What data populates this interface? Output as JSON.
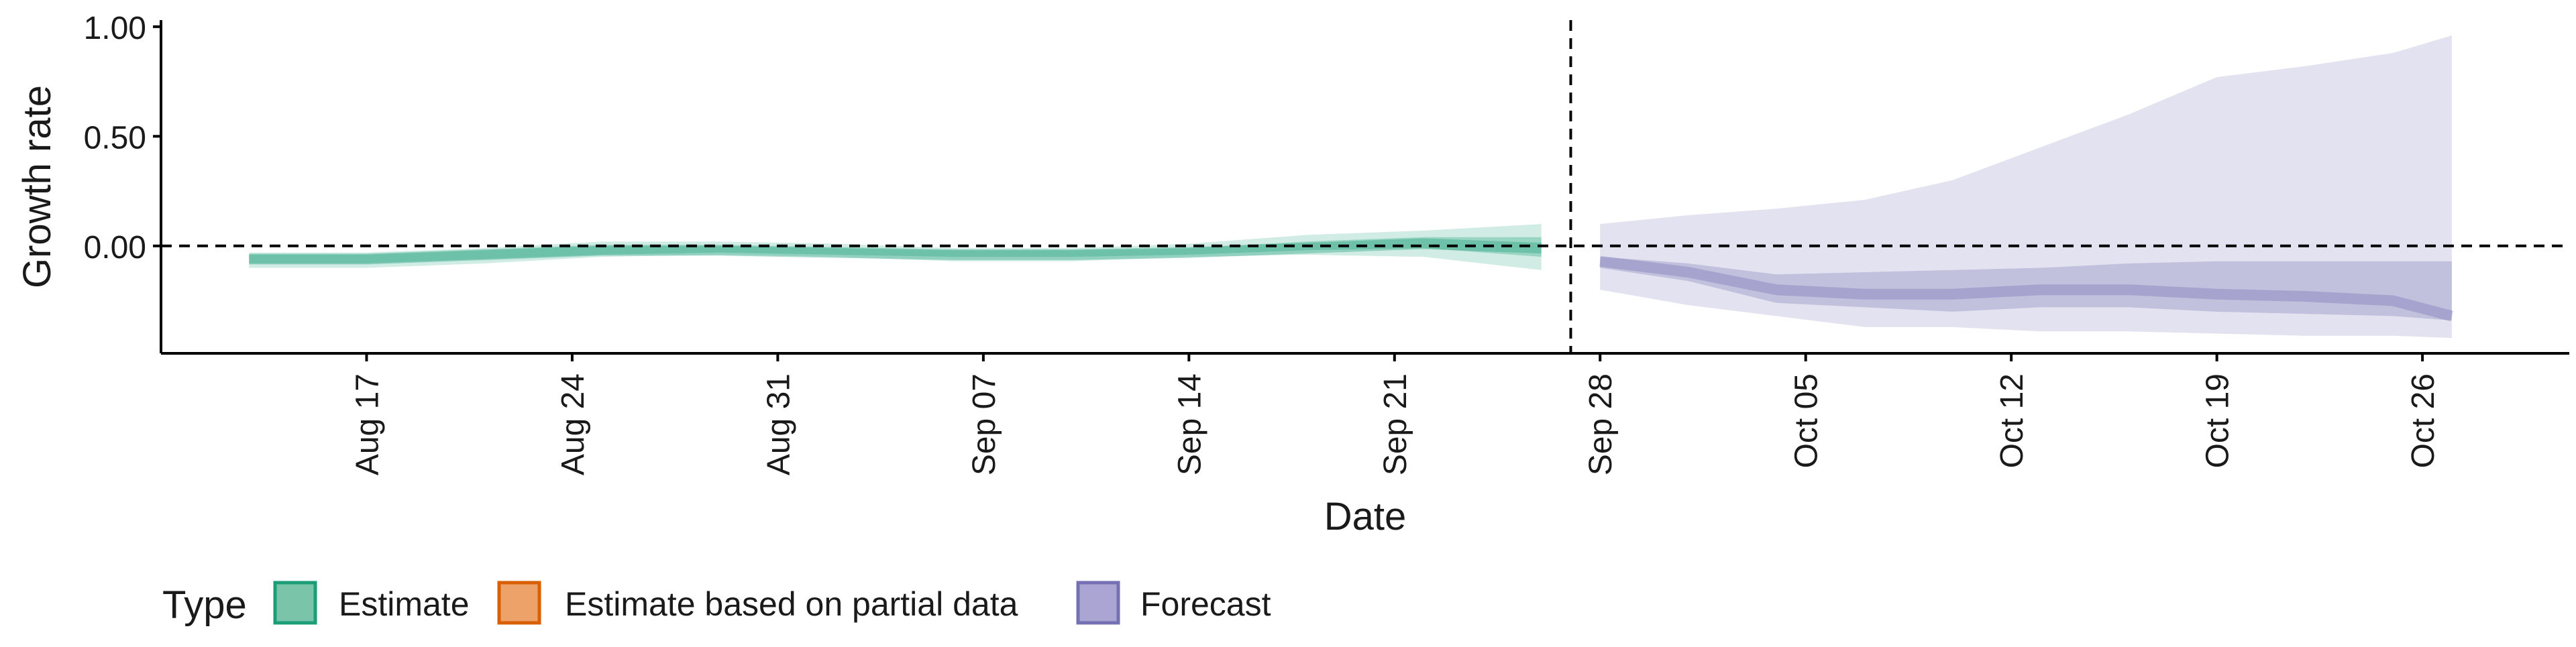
{
  "chart_data": {
    "type": "area",
    "title": "",
    "xlabel": "Date",
    "ylabel": "Growth rate",
    "x_ticks": [
      {
        "date": "2020-08-17",
        "label": "Aug 17"
      },
      {
        "date": "2020-08-24",
        "label": "Aug 24"
      },
      {
        "date": "2020-08-31",
        "label": "Aug 31"
      },
      {
        "date": "2020-09-07",
        "label": "Sep 07"
      },
      {
        "date": "2020-09-14",
        "label": "Sep 14"
      },
      {
        "date": "2020-09-21",
        "label": "Sep 21"
      },
      {
        "date": "2020-09-28",
        "label": "Sep 28"
      },
      {
        "date": "2020-10-05",
        "label": "Oct 05"
      },
      {
        "date": "2020-10-12",
        "label": "Oct 12"
      },
      {
        "date": "2020-10-19",
        "label": "Oct 19"
      },
      {
        "date": "2020-10-26",
        "label": "Oct 26"
      }
    ],
    "x_range": [
      "2020-08-10",
      "2020-10-31"
    ],
    "y_ticks": [
      {
        "value": 0,
        "label": "0.00"
      },
      {
        "value": 0.5,
        "label": "0.50"
      },
      {
        "value": 1.0,
        "label": "1.00"
      }
    ],
    "ylim": [
      -0.49,
      1.03
    ],
    "hline": 0,
    "vline": "2020-09-27",
    "legend": {
      "title": "Type",
      "placement": "bottom-left",
      "items": [
        {
          "label": "Estimate",
          "fill": "#7ac5a9",
          "stroke": "#1b9e77"
        },
        {
          "label": "Estimate based on partial data",
          "fill": "#eda26a",
          "stroke": "#d95f02"
        },
        {
          "label": "Forecast",
          "fill": "#aaa5d3",
          "stroke": "#7570b3"
        }
      ]
    },
    "series": [
      {
        "name": "Estimate",
        "color": "#1b9e77",
        "x": [
          "2020-08-13",
          "2020-08-17",
          "2020-08-21",
          "2020-08-25",
          "2020-08-29",
          "2020-09-02",
          "2020-09-06",
          "2020-09-10",
          "2020-09-14",
          "2020-09-18",
          "2020-09-22",
          "2020-09-26"
        ],
        "median": [
          -0.06,
          -0.06,
          -0.04,
          -0.02,
          -0.02,
          -0.03,
          -0.04,
          -0.04,
          -0.03,
          -0.01,
          0.01,
          -0.01
        ],
        "inner_lower": [
          -0.08,
          -0.08,
          -0.06,
          -0.04,
          -0.03,
          -0.04,
          -0.05,
          -0.05,
          -0.04,
          -0.02,
          -0.01,
          -0.05
        ],
        "inner_upper": [
          -0.04,
          -0.04,
          -0.02,
          0.0,
          0.0,
          -0.01,
          -0.02,
          -0.02,
          -0.01,
          0.02,
          0.04,
          0.04
        ],
        "outer_lower": [
          -0.1,
          -0.1,
          -0.08,
          -0.05,
          -0.04,
          -0.05,
          -0.07,
          -0.07,
          -0.05,
          -0.04,
          -0.05,
          -0.11
        ],
        "outer_upper": [
          -0.03,
          -0.03,
          -0.01,
          0.02,
          0.02,
          0.01,
          -0.01,
          -0.01,
          0.01,
          0.05,
          0.07,
          0.1
        ]
      },
      {
        "name": "Forecast",
        "color": "#7570b3",
        "x": [
          "2020-09-28",
          "2020-10-01",
          "2020-10-04",
          "2020-10-07",
          "2020-10-10",
          "2020-10-13",
          "2020-10-16",
          "2020-10-19",
          "2020-10-22",
          "2020-10-25",
          "2020-10-27"
        ],
        "median": [
          -0.07,
          -0.12,
          -0.2,
          -0.22,
          -0.22,
          -0.2,
          -0.2,
          -0.22,
          -0.23,
          -0.25,
          -0.32
        ],
        "inner_lower": [
          -0.1,
          -0.16,
          -0.26,
          -0.28,
          -0.3,
          -0.28,
          -0.28,
          -0.3,
          -0.31,
          -0.32,
          -0.34
        ],
        "inner_upper": [
          -0.05,
          -0.08,
          -0.13,
          -0.12,
          -0.11,
          -0.1,
          -0.08,
          -0.07,
          -0.07,
          -0.07,
          -0.07
        ],
        "outer_lower": [
          -0.2,
          -0.27,
          -0.32,
          -0.37,
          -0.37,
          -0.39,
          -0.39,
          -0.4,
          -0.41,
          -0.41,
          -0.42
        ],
        "outer_upper": [
          0.1,
          0.14,
          0.17,
          0.21,
          0.3,
          0.45,
          0.6,
          0.77,
          0.82,
          0.88,
          0.96
        ]
      }
    ]
  }
}
